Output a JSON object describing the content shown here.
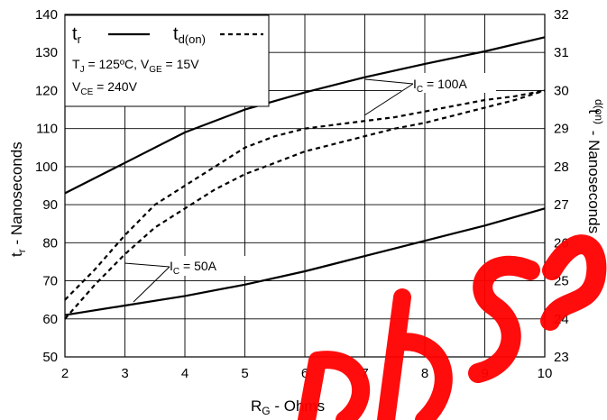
{
  "chart_data": {
    "type": "line",
    "xlabel_main": "R",
    "xlabel_sub": "G",
    "xlabel_rest": " - Ohms",
    "ylabel_left_main": "t",
    "ylabel_left_sub": "r",
    "ylabel_left_rest": " - Nanoseconds",
    "ylabel_right_main": "t",
    "ylabel_right_sub": "d(on)",
    "ylabel_right_rest": " - Nanoseconds",
    "xlim": [
      2,
      10
    ],
    "ylim_left": [
      50,
      140
    ],
    "ylim_right": [
      23,
      32
    ],
    "grid": true,
    "x_ticks": [
      "2",
      "3",
      "4",
      "5",
      "6",
      "7",
      "8",
      "9",
      "10"
    ],
    "y_left_ticks": [
      "50",
      "60",
      "70",
      "80",
      "90",
      "100",
      "110",
      "120",
      "130",
      "140"
    ],
    "y_right_ticks": [
      "23",
      "24",
      "25",
      "26",
      "27",
      "28",
      "29",
      "30",
      "31",
      "32"
    ],
    "legend": {
      "tr_main": "t",
      "tr_sub": "r",
      "td_main": "t",
      "td_sub": "d(on)",
      "cond1_tj": "T",
      "cond1_tj_sub": "J",
      "cond1_tj_val": " = 125ºC,  V",
      "cond1_vge_sub": "GE",
      "cond1_vge_val": " = 15V",
      "cond2_v": "V",
      "cond2_vce_sub": "CE",
      "cond2_vce_val": " = 240V",
      "placement": "top-left"
    },
    "annotations": {
      "ic100_main": "I",
      "ic100_sub": "C",
      "ic100_val": " = 100A",
      "ic50_main": "I",
      "ic50_sub": "C",
      "ic50_val": " = 50A"
    },
    "series": [
      {
        "key": "tr_100A",
        "axis": "left",
        "style": "solid",
        "x": [
          2,
          3,
          4,
          5,
          6,
          7,
          8,
          9,
          10
        ],
        "y": [
          93,
          101,
          109,
          115,
          119.5,
          123.5,
          127,
          130.3,
          134
        ]
      },
      {
        "key": "tr_50A",
        "axis": "left",
        "style": "solid",
        "x": [
          2,
          3,
          4,
          5,
          6,
          7,
          8,
          9,
          10
        ],
        "y": [
          61,
          63.5,
          66,
          69,
          72.5,
          76.5,
          80.5,
          84.5,
          89
        ]
      },
      {
        "key": "td_100A_upper",
        "axis": "right",
        "style": "dashed",
        "x": [
          2,
          2.5,
          3,
          3.5,
          4,
          4.5,
          5,
          5.5,
          6,
          6.5,
          7,
          7.5,
          8,
          8.5,
          9,
          9.5,
          10
        ],
        "y": [
          24.5,
          25.3,
          26.2,
          27.0,
          27.5,
          28.0,
          28.5,
          28.8,
          29.0,
          29.1,
          29.2,
          29.3,
          29.45,
          29.6,
          29.75,
          29.85,
          30.0
        ]
      },
      {
        "key": "td_100A_lower",
        "axis": "right",
        "style": "dashed",
        "x": [
          2,
          2.5,
          3,
          3.5,
          4,
          4.5,
          5,
          5.5,
          6,
          6.5,
          7,
          7.5,
          8,
          8.5,
          9,
          9.5,
          10
        ],
        "y": [
          24.0,
          24.9,
          25.7,
          26.4,
          26.9,
          27.4,
          27.8,
          28.1,
          28.4,
          28.6,
          28.8,
          29.0,
          29.15,
          29.35,
          29.55,
          29.75,
          30.0
        ]
      }
    ]
  },
  "watermark": {
    "color": "#ff0000"
  }
}
